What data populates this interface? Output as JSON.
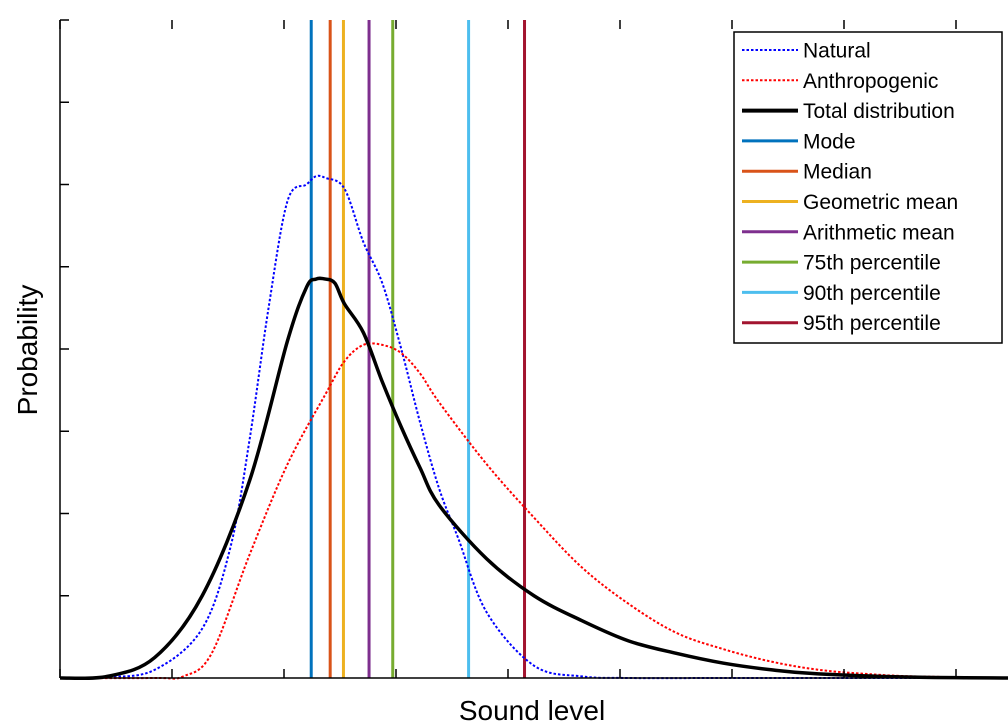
{
  "chart_data": {
    "type": "line",
    "xlabel": "Sound level",
    "ylabel": "Probability",
    "x_tick_labels": "none",
    "y_tick_labels": "none",
    "xlim": [
      0,
      10
    ],
    "ylim": [
      0,
      8
    ],
    "grid": false,
    "legend_position": "top-right",
    "series": [
      {
        "name": "Natural",
        "style": "dotted",
        "color": "#0000ff",
        "x": [
          0,
          0.5,
          1.0,
          1.5,
          1.8,
          2.0,
          2.2,
          2.4,
          2.6,
          2.7,
          2.8,
          3.0,
          3.2,
          3.4,
          3.6,
          3.8,
          4.0,
          4.2,
          4.5,
          5.0,
          5.5,
          6.0,
          7.0,
          8.0,
          9.0,
          10.0
        ],
        "y": [
          0,
          0.01,
          0.1,
          0.6,
          1.6,
          2.9,
          4.5,
          5.8,
          6.0,
          6.1,
          6.08,
          5.95,
          5.3,
          4.8,
          4.0,
          3.1,
          2.3,
          1.7,
          0.8,
          0.15,
          0.02,
          0,
          0,
          0,
          0,
          0
        ]
      },
      {
        "name": "Anthropogenic",
        "style": "dotted",
        "color": "#ff0000",
        "x": [
          0,
          1.0,
          1.3,
          1.6,
          2.0,
          2.4,
          2.8,
          3.0,
          3.2,
          3.4,
          3.6,
          3.8,
          4.0,
          4.5,
          5.0,
          5.5,
          6.0,
          6.5,
          7.0,
          7.5,
          8.0,
          8.5,
          9.0,
          10.0
        ],
        "y": [
          0,
          0,
          0.02,
          0.3,
          1.5,
          2.6,
          3.45,
          3.85,
          4.05,
          4.05,
          3.95,
          3.7,
          3.35,
          2.6,
          1.95,
          1.35,
          0.9,
          0.55,
          0.35,
          0.2,
          0.1,
          0.05,
          0.02,
          0
        ]
      },
      {
        "name": "Total distribution",
        "style": "solid",
        "color": "#000000",
        "x": [
          0,
          0.5,
          1.0,
          1.5,
          2.0,
          2.4,
          2.6,
          2.7,
          2.8,
          2.9,
          3.0,
          3.2,
          3.4,
          3.6,
          3.8,
          4.0,
          4.5,
          5.0,
          5.5,
          6.0,
          6.5,
          7.0,
          7.5,
          8.0,
          9.0,
          10.0
        ],
        "y": [
          0,
          0.02,
          0.25,
          1.0,
          2.4,
          4.1,
          4.75,
          4.85,
          4.85,
          4.8,
          4.55,
          4.2,
          3.6,
          3.05,
          2.55,
          2.1,
          1.45,
          1.0,
          0.7,
          0.45,
          0.3,
          0.18,
          0.1,
          0.05,
          0.01,
          0
        ]
      }
    ],
    "markers": [
      {
        "name": "Mode",
        "x": 2.65,
        "color": "#0072bd"
      },
      {
        "name": "Median",
        "x": 2.85,
        "color": "#d95319"
      },
      {
        "name": "Geometric mean",
        "x": 2.99,
        "color": "#edb120"
      },
      {
        "name": "Arithmetic mean",
        "x": 3.26,
        "color": "#7e2f8e"
      },
      {
        "name": "75th percentile",
        "x": 3.51,
        "color": "#77ac30"
      },
      {
        "name": "90th percentile",
        "x": 4.31,
        "color": "#4dbeee"
      },
      {
        "name": "95th percentile",
        "x": 4.9,
        "color": "#a2142f"
      }
    ]
  }
}
